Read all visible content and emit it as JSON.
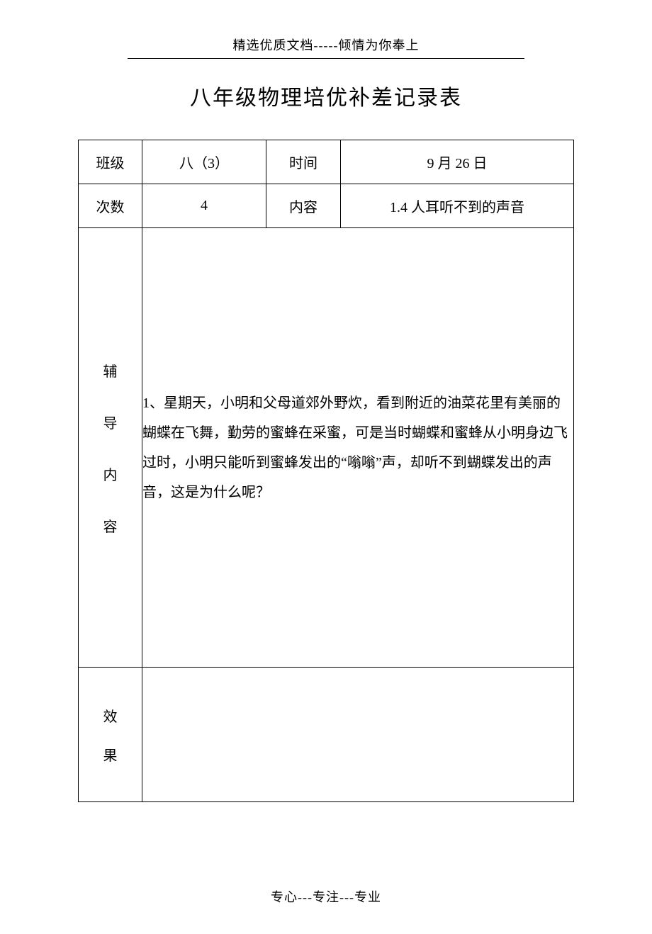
{
  "header": "精选优质文档-----倾情为你奉上",
  "title": "八年级物理培优补差记录表",
  "labels": {
    "class": "班级",
    "time": "时间",
    "number": "次数",
    "subject": "内容",
    "tutoring_c1": "辅",
    "tutoring_c2": "导",
    "tutoring_c3": "内",
    "tutoring_c4": "容",
    "effect_c1": "效",
    "effect_c2": "果"
  },
  "values": {
    "class": "八（3）",
    "time": "9 月 26 日",
    "number": "4",
    "subject": "1.4  人耳听不到的声音"
  },
  "content": {
    "q1": "1、星期天，小明和父母道郊外野炊，看到附近的油菜花里有美丽的蝴蝶在飞舞，勤劳的蜜蜂在采蜜，可是当时蝴蝶和蜜蜂从小明身边飞过时，小明只能听到蜜蜂发出的“嗡嗡”声，却听不到蝴蝶发出的声音，这是为什么呢？"
  },
  "effect": "",
  "footer": "专心---专注---专业",
  "colors": {
    "text": "#000000",
    "border": "#000000",
    "background": "#ffffff"
  },
  "fonts": {
    "body_family": "SimSun",
    "title_size_pt": 22,
    "body_size_pt": 15,
    "header_size_pt": 13
  }
}
